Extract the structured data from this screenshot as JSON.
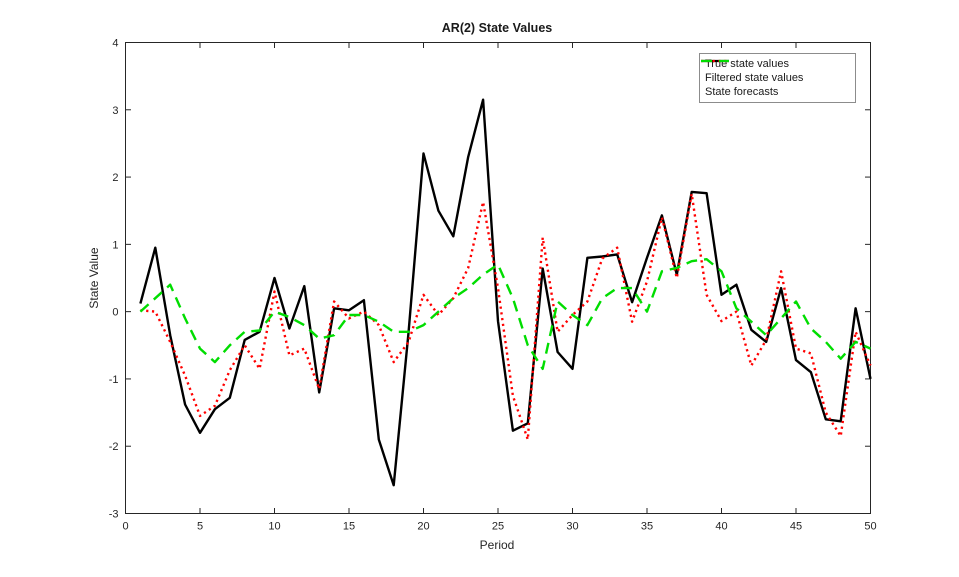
{
  "chart_data": {
    "type": "line",
    "title": "AR(2) State Values",
    "xlabel": "Period",
    "ylabel": "State Value",
    "xlim": [
      0,
      50
    ],
    "ylim": [
      -3,
      4
    ],
    "xticks": [
      0,
      5,
      10,
      15,
      20,
      25,
      30,
      35,
      40,
      45,
      50
    ],
    "yticks": [
      -3,
      -2,
      -1,
      0,
      1,
      2,
      3,
      4
    ],
    "grid": false,
    "legend_position": "top-right-inside",
    "x": [
      1,
      2,
      3,
      4,
      5,
      6,
      7,
      8,
      9,
      10,
      11,
      12,
      13,
      14,
      15,
      16,
      17,
      18,
      19,
      20,
      21,
      22,
      23,
      24,
      25,
      26,
      27,
      28,
      29,
      30,
      31,
      32,
      33,
      34,
      35,
      36,
      37,
      38,
      39,
      40,
      41,
      42,
      43,
      44,
      45,
      46,
      47,
      48,
      49,
      50
    ],
    "series": [
      {
        "name": "True state values",
        "color": "#000000",
        "style": "solid",
        "values": [
          0.12,
          0.95,
          -0.35,
          -1.38,
          -1.8,
          -1.45,
          -1.28,
          -0.42,
          -0.3,
          0.5,
          -0.25,
          0.38,
          -1.2,
          0.05,
          0.02,
          0.17,
          -1.9,
          -2.58,
          -0.3,
          2.35,
          1.5,
          1.12,
          2.3,
          3.15,
          -0.14,
          -1.77,
          -1.66,
          0.64,
          -0.6,
          -0.85,
          0.8,
          0.82,
          0.85,
          0.14,
          0.8,
          1.43,
          0.55,
          1.78,
          1.76,
          0.25,
          0.4,
          -0.27,
          -0.45,
          0.35,
          -0.72,
          -0.9,
          -1.6,
          -1.63,
          0.05,
          -1.0
        ]
      },
      {
        "name": "Filtered state values",
        "color": "#ff0000",
        "style": "dotted",
        "values": [
          0.02,
          0.0,
          -0.45,
          -0.95,
          -1.55,
          -1.4,
          -0.87,
          -0.5,
          -0.85,
          0.3,
          -0.65,
          -0.55,
          -1.15,
          0.15,
          -0.1,
          0.0,
          -0.2,
          -0.75,
          -0.45,
          0.25,
          -0.05,
          0.2,
          0.65,
          1.63,
          0.35,
          -1.25,
          -1.9,
          1.1,
          -0.3,
          -0.05,
          0.15,
          0.79,
          0.95,
          -0.15,
          0.45,
          1.4,
          0.5,
          1.75,
          0.25,
          -0.14,
          0.0,
          -0.8,
          -0.42,
          0.6,
          -0.55,
          -0.62,
          -1.5,
          -1.85,
          -0.3,
          -0.8
        ]
      },
      {
        "name": "State forecasts",
        "color": "#00dd00",
        "style": "dashed",
        "values": [
          0.0,
          0.2,
          0.4,
          -0.1,
          -0.55,
          -0.75,
          -0.5,
          -0.3,
          -0.28,
          0.0,
          -0.08,
          -0.2,
          -0.4,
          -0.35,
          -0.05,
          -0.05,
          -0.15,
          -0.3,
          -0.3,
          -0.2,
          0.0,
          0.2,
          0.35,
          0.55,
          0.7,
          0.2,
          -0.5,
          -0.85,
          0.15,
          -0.05,
          -0.2,
          0.2,
          0.35,
          0.35,
          0.0,
          0.6,
          0.65,
          0.75,
          0.78,
          0.6,
          0.05,
          -0.15,
          -0.35,
          -0.1,
          0.15,
          -0.25,
          -0.45,
          -0.7,
          -0.45,
          -0.55
        ]
      }
    ]
  }
}
